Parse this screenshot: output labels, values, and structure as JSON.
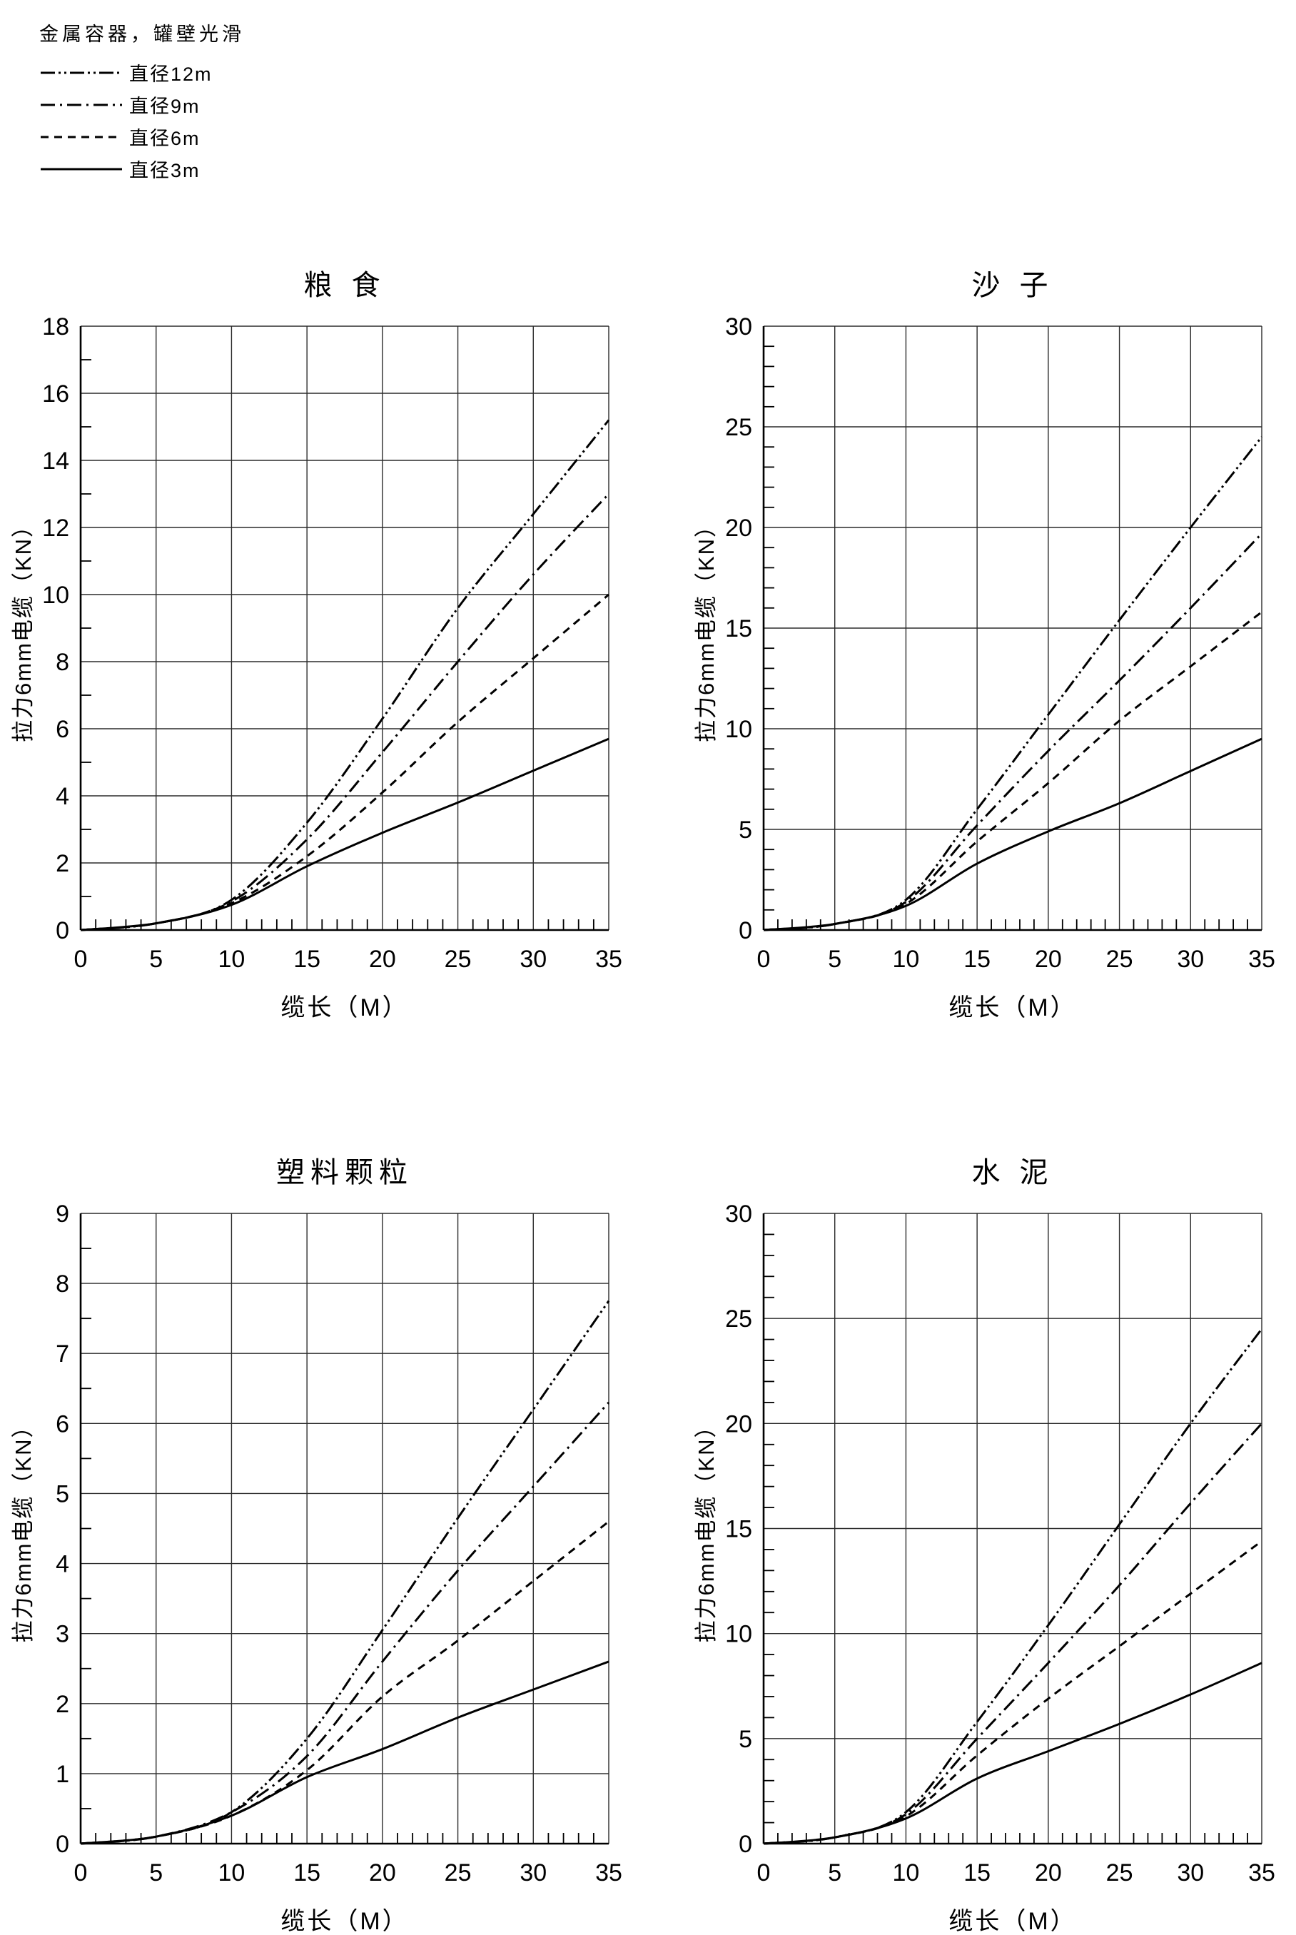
{
  "page": {
    "background": "#ffffff",
    "ink_color": "#000000",
    "grid_color": "#2b2b2b"
  },
  "legend": {
    "title": "金属容器，罐壁光滑",
    "items": [
      {
        "label": "直径12m",
        "style": "dash-dot-dot"
      },
      {
        "label": "直径9m",
        "style": "dash-dot"
      },
      {
        "label": "直径6m",
        "style": "dashed"
      },
      {
        "label": "直径3m",
        "style": "solid"
      }
    ]
  },
  "chart_data": [
    {
      "type": "line",
      "name": "grain",
      "title": "粮 食",
      "xlabel": "缆长（M）",
      "ylabel": "拉力6mm电缆（KN）",
      "xlim": [
        0,
        35
      ],
      "ylim": [
        0,
        18
      ],
      "xticks": [
        0,
        5,
        10,
        15,
        20,
        25,
        30,
        35
      ],
      "yticks": [
        0,
        2,
        4,
        6,
        8,
        10,
        12,
        14,
        16,
        18
      ],
      "x_minor_step": 1,
      "y_minor_step": 1,
      "grid": "major-both",
      "x": [
        0,
        5,
        10,
        15,
        20,
        25,
        30,
        35
      ],
      "series": [
        {
          "name": "直径12m",
          "style": "dash-dot-dot",
          "values": [
            0,
            0.2,
            0.9,
            3.2,
            6.3,
            9.6,
            12.4,
            15.2
          ]
        },
        {
          "name": "直径9m",
          "style": "dash-dot",
          "values": [
            0,
            0.2,
            0.85,
            2.7,
            5.3,
            8.0,
            10.6,
            13.0
          ]
        },
        {
          "name": "直径6m",
          "style": "dashed",
          "values": [
            0,
            0.2,
            0.8,
            2.2,
            4.1,
            6.2,
            8.1,
            10.0
          ]
        },
        {
          "name": "直径3m",
          "style": "solid",
          "values": [
            0,
            0.2,
            0.75,
            1.9,
            2.9,
            3.8,
            4.75,
            5.7
          ]
        }
      ]
    },
    {
      "type": "line",
      "name": "sand",
      "title": "沙 子",
      "xlabel": "缆长（M）",
      "ylabel": "拉力6mm电缆（KN）",
      "xlim": [
        0,
        35
      ],
      "ylim": [
        0,
        30
      ],
      "xticks": [
        0,
        5,
        10,
        15,
        20,
        25,
        30,
        35
      ],
      "yticks": [
        0,
        5,
        10,
        15,
        20,
        25,
        30
      ],
      "x_minor_step": 1,
      "y_minor_step": 1,
      "grid": "major-both",
      "x": [
        0,
        5,
        10,
        15,
        20,
        25,
        30,
        35
      ],
      "series": [
        {
          "name": "直径12m",
          "style": "dash-dot-dot",
          "values": [
            0,
            0.3,
            1.5,
            6.0,
            10.7,
            15.4,
            20.0,
            24.5
          ]
        },
        {
          "name": "直径9m",
          "style": "dash-dot",
          "values": [
            0,
            0.3,
            1.4,
            5.2,
            8.9,
            12.4,
            16.0,
            19.7
          ]
        },
        {
          "name": "直径6m",
          "style": "dashed",
          "values": [
            0,
            0.3,
            1.3,
            4.4,
            7.3,
            10.4,
            13.1,
            15.8
          ]
        },
        {
          "name": "直径3m",
          "style": "solid",
          "values": [
            0,
            0.3,
            1.2,
            3.3,
            4.9,
            6.3,
            7.9,
            9.5
          ]
        }
      ]
    },
    {
      "type": "line",
      "name": "plastic-pellets",
      "title": "塑料颗粒",
      "xlabel": "缆长（M）",
      "ylabel": "拉力6mm电缆（KN）",
      "xlim": [
        0,
        35
      ],
      "ylim": [
        0,
        9
      ],
      "xticks": [
        0,
        5,
        10,
        15,
        20,
        25,
        30,
        35
      ],
      "yticks": [
        0,
        1,
        2,
        3,
        4,
        5,
        6,
        7,
        8,
        9
      ],
      "x_minor_step": 1,
      "y_minor_step": 0.5,
      "grid": "major-both",
      "x": [
        0,
        5,
        10,
        15,
        20,
        25,
        30,
        35
      ],
      "series": [
        {
          "name": "直径12m",
          "style": "dash-dot-dot",
          "values": [
            0,
            0.1,
            0.45,
            1.5,
            3.05,
            4.65,
            6.2,
            7.75
          ]
        },
        {
          "name": "直径9m",
          "style": "dash-dot",
          "values": [
            0,
            0.1,
            0.45,
            1.25,
            2.6,
            3.9,
            5.1,
            6.3
          ]
        },
        {
          "name": "直径6m",
          "style": "dashed",
          "values": [
            0,
            0.1,
            0.4,
            1.05,
            2.1,
            2.9,
            3.75,
            4.6
          ]
        },
        {
          "name": "直径3m",
          "style": "solid",
          "values": [
            0,
            0.1,
            0.4,
            0.95,
            1.35,
            1.8,
            2.2,
            2.6
          ]
        }
      ]
    },
    {
      "type": "line",
      "name": "cement",
      "title": "水 泥",
      "xlabel": "缆长（M）",
      "ylabel": "拉力6mm电缆（KN）",
      "xlim": [
        0,
        35
      ],
      "ylim": [
        0,
        30
      ],
      "xticks": [
        0,
        5,
        10,
        15,
        20,
        25,
        30,
        35
      ],
      "yticks": [
        0,
        5,
        10,
        15,
        20,
        25,
        30
      ],
      "x_minor_step": 1,
      "y_minor_step": 1,
      "grid": "major-both",
      "x": [
        0,
        5,
        10,
        15,
        20,
        25,
        30,
        35
      ],
      "series": [
        {
          "name": "直径12m",
          "style": "dash-dot-dot",
          "values": [
            0,
            0.3,
            1.5,
            5.8,
            10.4,
            15.2,
            20.0,
            24.5
          ]
        },
        {
          "name": "直径9m",
          "style": "dash-dot",
          "values": [
            0,
            0.3,
            1.4,
            5.0,
            8.6,
            12.3,
            16.2,
            20.0
          ]
        },
        {
          "name": "直径6m",
          "style": "dashed",
          "values": [
            0,
            0.3,
            1.3,
            4.2,
            6.9,
            9.4,
            11.9,
            14.4
          ]
        },
        {
          "name": "直径3m",
          "style": "solid",
          "values": [
            0,
            0.3,
            1.2,
            3.1,
            4.4,
            5.7,
            7.1,
            8.6
          ]
        }
      ]
    }
  ]
}
